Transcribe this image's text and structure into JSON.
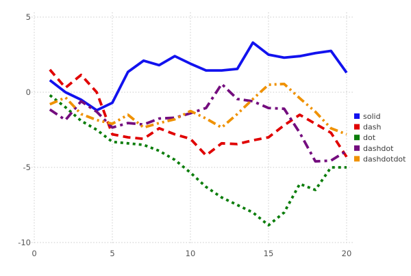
{
  "chart_data": {
    "type": "line",
    "title": "",
    "xlabel": "",
    "ylabel": "",
    "xlim": [
      0,
      20
    ],
    "ylim": [
      -10,
      5
    ],
    "x_ticks": [
      0,
      5,
      10,
      15,
      20
    ],
    "y_ticks": [
      5,
      0,
      -5,
      -10
    ],
    "x_tick_labels": [
      "0",
      "5",
      "10",
      "15",
      "20"
    ],
    "y_tick_labels": [
      "5",
      "0",
      "-5",
      "-10"
    ],
    "grid": true,
    "grid_style": "dotted",
    "grid_color": "#c9c9c9",
    "tick_label_color": "#545454",
    "legend_position": "right-outside",
    "x": [
      1,
      2,
      3,
      4,
      5,
      6,
      7,
      8,
      9,
      10,
      11,
      12,
      13,
      14,
      15,
      16,
      17,
      18,
      19,
      20
    ],
    "series": [
      {
        "name": "solid",
        "color": "#1212ee",
        "line_style": "solid",
        "values": [
          0.8,
          0.0,
          -0.5,
          -1.2,
          -0.7,
          1.35,
          2.1,
          1.8,
          2.4,
          1.9,
          1.45,
          1.45,
          1.55,
          3.3,
          2.5,
          2.3,
          2.4,
          2.6,
          2.75,
          1.3
        ]
      },
      {
        "name": "dash",
        "color": "#e00000",
        "line_style": "dash",
        "values": [
          1.5,
          0.3,
          1.15,
          0.0,
          -2.8,
          -3.0,
          -3.1,
          -2.4,
          -2.8,
          -3.1,
          -4.2,
          -3.4,
          -3.45,
          -3.2,
          -3.0,
          -2.2,
          -1.5,
          -2.1,
          -2.7,
          -4.3
        ]
      },
      {
        "name": "dot",
        "color": "#0b7d0b",
        "line_style": "dot",
        "values": [
          -0.2,
          -1.0,
          -1.9,
          -2.5,
          -3.3,
          -3.4,
          -3.5,
          -3.9,
          -4.5,
          -5.35,
          -6.3,
          -7.0,
          -7.5,
          -8.0,
          -8.85,
          -8.0,
          -6.1,
          -6.5,
          -5.0,
          -5.0
        ]
      },
      {
        "name": "dashdot",
        "color": "#740d7e",
        "line_style": "dashdot",
        "values": [
          -1.15,
          -1.85,
          -0.6,
          -1.3,
          -2.35,
          -2.05,
          -2.15,
          -1.75,
          -1.7,
          -1.4,
          -1.05,
          0.55,
          -0.45,
          -0.6,
          -1.05,
          -1.1,
          -2.7,
          -4.6,
          -4.55,
          -3.9
        ]
      },
      {
        "name": "dashdotdot",
        "color": "#ef9100",
        "line_style": "dashdotdot",
        "values": [
          -0.8,
          -0.35,
          -1.45,
          -1.85,
          -2.1,
          -1.5,
          -2.35,
          -2.05,
          -1.8,
          -1.25,
          -1.75,
          -2.35,
          -1.45,
          -0.45,
          0.5,
          0.55,
          -0.4,
          -1.3,
          -2.4,
          -2.8
        ]
      }
    ],
    "legend": {
      "items": [
        {
          "label": "solid",
          "color": "#1212ee"
        },
        {
          "label": "dash",
          "color": "#e00000"
        },
        {
          "label": "dot",
          "color": "#0b7d0b"
        },
        {
          "label": "dashdot",
          "color": "#740d7e"
        },
        {
          "label": "dashdotdot",
          "color": "#ef9100"
        }
      ]
    }
  }
}
